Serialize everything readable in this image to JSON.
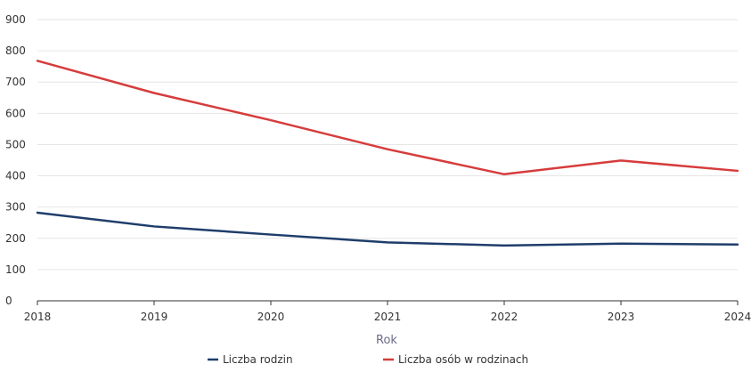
{
  "chart_data": {
    "type": "line",
    "title": "",
    "xlabel": "Rok",
    "ylabel": "",
    "x": [
      "2018",
      "2019",
      "2020",
      "2021",
      "2022",
      "2023",
      "2024"
    ],
    "ylim": [
      0,
      900
    ],
    "yticks": [
      0,
      100,
      200,
      300,
      400,
      500,
      600,
      700,
      800,
      900
    ],
    "grid": true,
    "legend_position": "bottom",
    "series": [
      {
        "name": "Liczba rodzin",
        "color": "#1f3d6b",
        "values": [
          282,
          238,
          212,
          187,
          177,
          183,
          180
        ]
      },
      {
        "name": "Liczba osób w rodzinach",
        "color": "#d63c3c",
        "values": [
          768,
          665,
          578,
          485,
          405,
          449,
          416
        ]
      }
    ]
  }
}
